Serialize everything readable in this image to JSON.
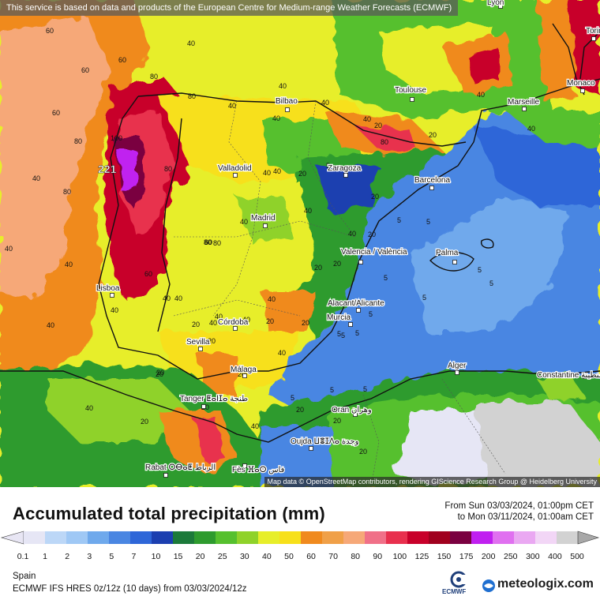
{
  "notice": "This service is based on data and products of the European Centre for Medium-range Weather Forecasts (ECMWF)",
  "attribution": "Map data © OpenStreetMap contributors, rendering GIScience Research Group @ Heidelberg University",
  "title": "Accumulated total precipitation (mm)",
  "period": {
    "from": "From Sun 03/03/2024, 01:00pm CET",
    "to": "to Mon 03/11/2024, 01:00am CET"
  },
  "region": "Spain",
  "model": "ECMWF IFS HRES 0z/12z (10 days) from 03/03/2024/12z",
  "ecmwf_label": "ECMWF",
  "brand": "meteologix.com",
  "max_label": "221",
  "colorbar": {
    "labels": [
      "0.1",
      "1",
      "2",
      "3",
      "5",
      "7",
      "10",
      "15",
      "20",
      "25",
      "30",
      "40",
      "50",
      "60",
      "70",
      "80",
      "90",
      "100",
      "125",
      "150",
      "175",
      "200",
      "250",
      "300",
      "400",
      "500"
    ],
    "colors": [
      "#e6e6f5",
      "#bcd7f7",
      "#9fc8f5",
      "#6fa9ec",
      "#4a86e2",
      "#2e66d8",
      "#1c3fb0",
      "#1c7a3a",
      "#2e9b2e",
      "#56c02e",
      "#8fd22a",
      "#e7ee2a",
      "#f7e01a",
      "#f08a1e",
      "#f0a048",
      "#f6a878",
      "#f07088",
      "#e8304e",
      "#c8002a",
      "#a0001e",
      "#7a0040",
      "#c020f0",
      "#e070f0",
      "#eaa8f2",
      "#f2d6f6",
      "#d2d2d2"
    ],
    "arrow_left": "#e8e6f4",
    "arrow_right": "#a8a8a8"
  },
  "cities": [
    {
      "name": "Bilbao"
    },
    {
      "name": "Toulouse"
    },
    {
      "name": "Marseille"
    },
    {
      "name": "Torino"
    },
    {
      "name": "Monaco"
    },
    {
      "name": "Lyon"
    },
    {
      "name": "Valladolid"
    },
    {
      "name": "Zaragoza"
    },
    {
      "name": "Barcelona"
    },
    {
      "name": "Madrid"
    },
    {
      "name": "Valencia / València"
    },
    {
      "name": "Palma"
    },
    {
      "name": "Lisboa"
    },
    {
      "name": "Alacant/Alicante"
    },
    {
      "name": "Murcia"
    },
    {
      "name": "Córdoba"
    },
    {
      "name": "Sevilla"
    },
    {
      "name": "Málaga"
    },
    {
      "name": "Tanger ⵟⴰⵏⵊⴰ طنجة"
    },
    {
      "name": "Alger"
    },
    {
      "name": "Constantine قسنطينة"
    },
    {
      "name": "Oran وهران"
    },
    {
      "name": "Oujda ⵡⴻⵊⴷⴰ وجدة"
    },
    {
      "name": "Rabat ⵔⴱⴰⵟ الرباط"
    },
    {
      "name": "Fès ⴼⴰⵙ فاس"
    }
  ],
  "contour_labels": [
    "60",
    "60",
    "40",
    "80",
    "100",
    "80",
    "40",
    "40",
    "40",
    "40",
    "80",
    "40",
    "40",
    "40",
    "80",
    "80",
    "40",
    "40",
    "80",
    "40",
    "40",
    "20",
    "40",
    "20",
    "20",
    "20",
    "5",
    "5",
    "5",
    "5",
    "5",
    "5",
    "5",
    "5",
    "5",
    "5",
    "20",
    "20",
    "20",
    "40",
    "40",
    "40",
    "40",
    "40",
    "40",
    "20",
    "20",
    "20",
    "20",
    "20",
    "40",
    "40",
    "60",
    "80",
    "60",
    "60",
    "40",
    "40",
    "40",
    "20",
    "20",
    "20",
    "20",
    "5",
    "5",
    "5",
    "20",
    "5",
    "40",
    "40",
    "20",
    "20",
    "60",
    "40",
    "80"
  ]
}
